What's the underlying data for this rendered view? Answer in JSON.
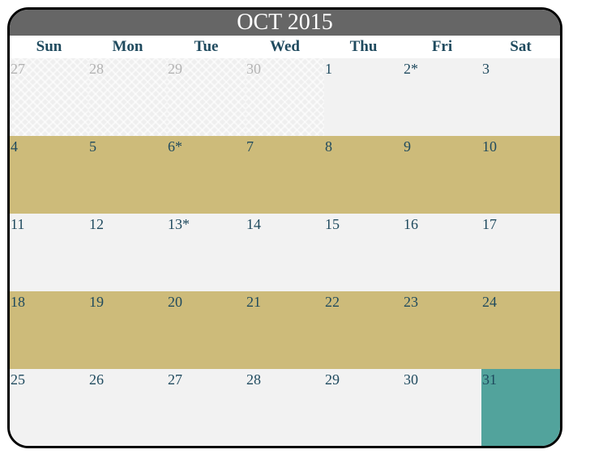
{
  "calendar": {
    "title": "OCT 2015",
    "weekdays": [
      "Sun",
      "Mon",
      "Tue",
      "Wed",
      "Thu",
      "Fri",
      "Sat"
    ],
    "colors": {
      "header_bg": "#666666",
      "weekday_text": "#1f4a5e",
      "day_text": "#1f4a5e",
      "other_month_text": "#b3b3b3",
      "light_row": "#f2f2f2",
      "gold_row": "#cdbb7a",
      "today": "#52a39c"
    },
    "weeks": [
      {
        "style": "light",
        "days": [
          {
            "label": "27",
            "other_month": true
          },
          {
            "label": "28",
            "other_month": true
          },
          {
            "label": "29",
            "other_month": true
          },
          {
            "label": "30",
            "other_month": true
          },
          {
            "label": "1"
          },
          {
            "label": "2*"
          },
          {
            "label": "3"
          }
        ]
      },
      {
        "style": "gold",
        "days": [
          {
            "label": "4"
          },
          {
            "label": "5"
          },
          {
            "label": "6*"
          },
          {
            "label": "7"
          },
          {
            "label": "8"
          },
          {
            "label": "9"
          },
          {
            "label": "10"
          }
        ]
      },
      {
        "style": "light",
        "days": [
          {
            "label": "11"
          },
          {
            "label": "12"
          },
          {
            "label": "13*"
          },
          {
            "label": "14"
          },
          {
            "label": "15"
          },
          {
            "label": "16"
          },
          {
            "label": "17"
          }
        ]
      },
      {
        "style": "gold",
        "days": [
          {
            "label": "18"
          },
          {
            "label": "19"
          },
          {
            "label": "20"
          },
          {
            "label": "21"
          },
          {
            "label": "22"
          },
          {
            "label": "23"
          },
          {
            "label": "24"
          }
        ]
      },
      {
        "style": "light",
        "days": [
          {
            "label": "25"
          },
          {
            "label": "26"
          },
          {
            "label": "27"
          },
          {
            "label": "28"
          },
          {
            "label": "29"
          },
          {
            "label": "30"
          },
          {
            "label": "31",
            "today": true
          }
        ]
      }
    ]
  }
}
